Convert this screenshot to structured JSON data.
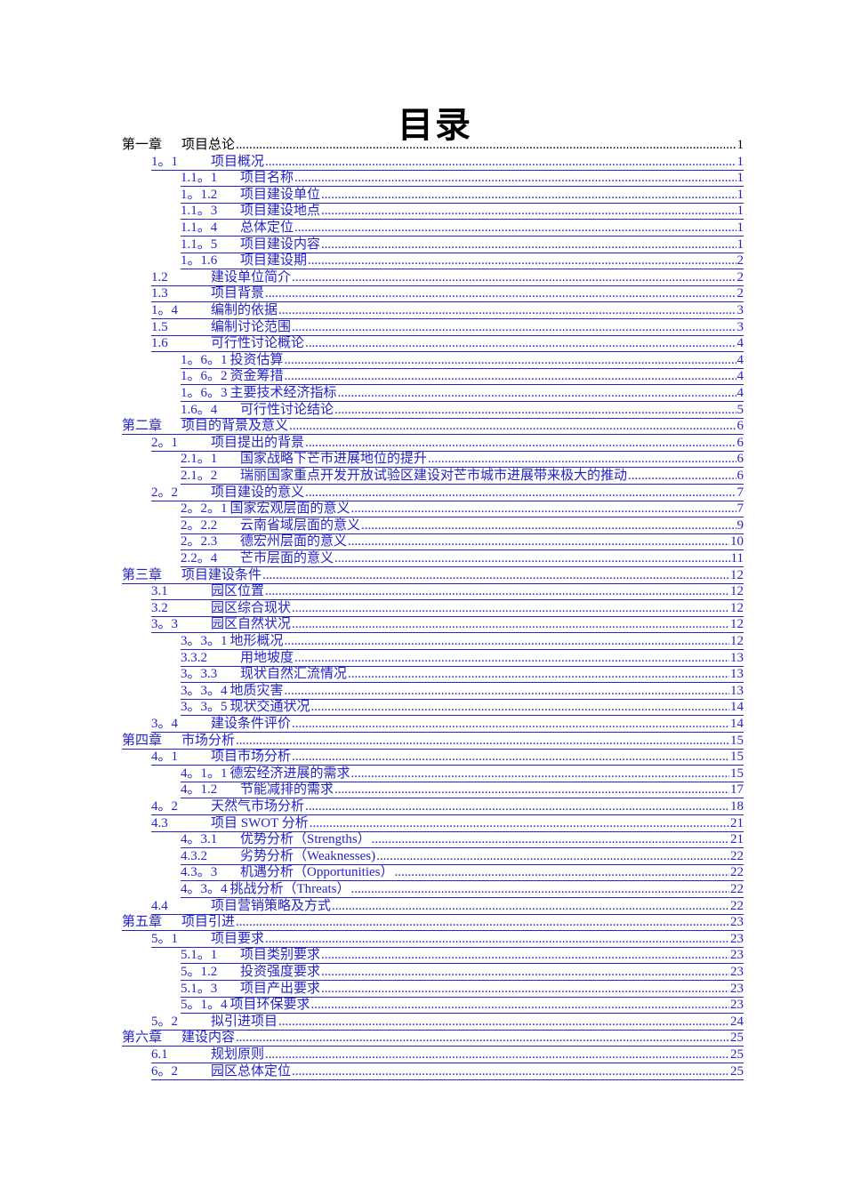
{
  "title": "目录",
  "colors": {
    "link": "#2323c8",
    "text": "#000000"
  },
  "toc": [
    {
      "level": 0,
      "num": "第一章",
      "title": "项目总论",
      "page": "1",
      "link": false
    },
    {
      "level": 1,
      "num": "1。1",
      "title": "项目概况",
      "page": "1",
      "link": true
    },
    {
      "level": 2,
      "num": "1.1。1",
      "title": "项目名称",
      "page": "1",
      "link": true
    },
    {
      "level": 2,
      "num": "1。1.2",
      "title": "项目建设单位",
      "page": "1",
      "link": true
    },
    {
      "level": 2,
      "num": "1.1。3",
      "title": "项目建设地点",
      "page": "1",
      "link": true
    },
    {
      "level": 2,
      "num": "1.1。4",
      "title": "总体定位",
      "page": "1",
      "link": true
    },
    {
      "level": 2,
      "num": "1.1。5",
      "title": "项目建设内容",
      "page": "1",
      "link": true
    },
    {
      "level": 2,
      "num": "1。1.6",
      "title": "项目建设期",
      "page": "2",
      "link": true
    },
    {
      "level": 1,
      "num": "1.2",
      "title": "建设单位简介",
      "page": "2",
      "link": true
    },
    {
      "level": 1,
      "num": "1.3",
      "title": "项目背景",
      "page": "2",
      "link": true
    },
    {
      "level": 1,
      "num": "1。4",
      "title": "编制的依据",
      "page": "3",
      "link": true
    },
    {
      "level": 1,
      "num": "1.5",
      "title": "编制讨论范围",
      "page": "3",
      "link": true
    },
    {
      "level": 1,
      "num": "1.6",
      "title": "可行性讨论概论",
      "page": "4",
      "link": true
    },
    {
      "level": 2,
      "num": "1。6。1",
      "title": "投资估算",
      "page": "4",
      "link": true,
      "wide": true
    },
    {
      "level": 2,
      "num": "1。6。2",
      "title": "资金筹措",
      "page": "4",
      "link": true,
      "wide": true
    },
    {
      "level": 2,
      "num": "1。6。3",
      "title": "主要技术经济指标",
      "page": "4",
      "link": true,
      "wide": true
    },
    {
      "level": 2,
      "num": "1.6。4",
      "title": "可行性讨论结论",
      "page": "5",
      "link": true
    },
    {
      "level": 0,
      "num": "第二章",
      "title": "项目的背景及意义",
      "page": "6",
      "link": true
    },
    {
      "level": 1,
      "num": "2。1",
      "title": "项目提出的背景",
      "page": "6",
      "link": true
    },
    {
      "level": 2,
      "num": "2.1。1",
      "title": "国家战略下芒市进展地位的提升",
      "page": "6",
      "link": true
    },
    {
      "level": 2,
      "num": "2.1。2",
      "title": "瑞丽国家重点开发开放试验区建设对芒市城市进展带来极大的推动",
      "page": "6",
      "link": true
    },
    {
      "level": 1,
      "num": "2。2",
      "title": "项目建设的意义",
      "page": "7",
      "link": true
    },
    {
      "level": 2,
      "num": "2。2。1",
      "title": "国家宏观层面的意义",
      "page": "7",
      "link": true,
      "wide": true
    },
    {
      "level": 2,
      "num": "2。2.2",
      "title": "云南省域层面的意义",
      "page": "9",
      "link": true
    },
    {
      "level": 2,
      "num": "2。2.3",
      "title": "德宏州层面的意义",
      "page": "10",
      "link": true
    },
    {
      "level": 2,
      "num": "2.2。4",
      "title": "芒市层面的意义",
      "page": "11",
      "link": true
    },
    {
      "level": 0,
      "num": "第三章",
      "title": "项目建设条件",
      "page": "12",
      "link": true
    },
    {
      "level": 1,
      "num": "3.1",
      "title": "园区位置",
      "page": "12",
      "link": true
    },
    {
      "level": 1,
      "num": "3.2",
      "title": "园区综合现状",
      "page": "12",
      "link": true
    },
    {
      "level": 1,
      "num": "3。3",
      "title": "园区自然状况",
      "page": "12",
      "link": true
    },
    {
      "level": 2,
      "num": "3。3。1",
      "title": "地形概况",
      "page": "12",
      "link": true,
      "wide": true
    },
    {
      "level": 2,
      "num": "3.3.2",
      "title": "用地坡度",
      "page": "13",
      "link": true
    },
    {
      "level": 2,
      "num": "3。3.3",
      "title": "现状自然汇流情况",
      "page": "13",
      "link": true
    },
    {
      "level": 2,
      "num": "3。3。4",
      "title": "地质灾害",
      "page": "13",
      "link": true,
      "wide": true
    },
    {
      "level": 2,
      "num": "3。3。5",
      "title": "现状交通状况",
      "page": "14",
      "link": true,
      "wide": true
    },
    {
      "level": 1,
      "num": "3。4",
      "title": "建设条件评价",
      "page": "14",
      "link": true
    },
    {
      "level": 0,
      "num": "第四章",
      "title": "市场分析",
      "page": "15",
      "link": true
    },
    {
      "level": 1,
      "num": "4。1",
      "title": "项目市场分析",
      "page": "15",
      "link": true
    },
    {
      "level": 2,
      "num": "4。1。1",
      "title": "德宏经济进展的需求",
      "page": "15",
      "link": true,
      "wide": true
    },
    {
      "level": 2,
      "num": "4。1.2",
      "title": "节能减排的需求",
      "page": "17",
      "link": true
    },
    {
      "level": 1,
      "num": "4。2",
      "title": "天然气市场分析",
      "page": "18",
      "link": true
    },
    {
      "level": 1,
      "num": "4.3",
      "title": "项目 SWOT 分析",
      "page": "21",
      "link": true
    },
    {
      "level": 2,
      "num": "4。3.1",
      "title": "优势分析（Strengths）",
      "page": "21",
      "link": true
    },
    {
      "level": 2,
      "num": "4.3.2",
      "title": "劣势分析（Weaknesses)",
      "page": "22",
      "link": true
    },
    {
      "level": 2,
      "num": "4.3。3",
      "title": "机遇分析（Opportunities）",
      "page": "22",
      "link": true
    },
    {
      "level": 2,
      "num": "4。3。4",
      "title": "挑战分析（Threats）",
      "page": "22",
      "link": true,
      "wide": true
    },
    {
      "level": 1,
      "num": "4.4",
      "title": "项目营销策略及方式",
      "page": "22",
      "link": true
    },
    {
      "level": 0,
      "num": "第五章",
      "title": "项目引进",
      "page": "23",
      "link": true
    },
    {
      "level": 1,
      "num": "5。1",
      "title": "项目要求",
      "page": "23",
      "link": true
    },
    {
      "level": 2,
      "num": "5.1。1",
      "title": "项目类别要求",
      "page": "23",
      "link": true
    },
    {
      "level": 2,
      "num": "5。1.2",
      "title": "投资强度要求",
      "page": "23",
      "link": true
    },
    {
      "level": 2,
      "num": "5.1。3",
      "title": "项目产出要求",
      "page": "23",
      "link": true
    },
    {
      "level": 2,
      "num": "5。1。4",
      "title": "项目环保要求",
      "page": "23",
      "link": true,
      "wide": true
    },
    {
      "level": 1,
      "num": "5。2",
      "title": "拟引进项目",
      "page": "24",
      "link": true
    },
    {
      "level": 0,
      "num": "第六章",
      "title": "建设内容",
      "page": "25",
      "link": true
    },
    {
      "level": 1,
      "num": "6.1",
      "title": "规划原则",
      "page": "25",
      "link": true
    },
    {
      "level": 1,
      "num": "6。2",
      "title": "园区总体定位",
      "page": "25",
      "link": true
    }
  ]
}
